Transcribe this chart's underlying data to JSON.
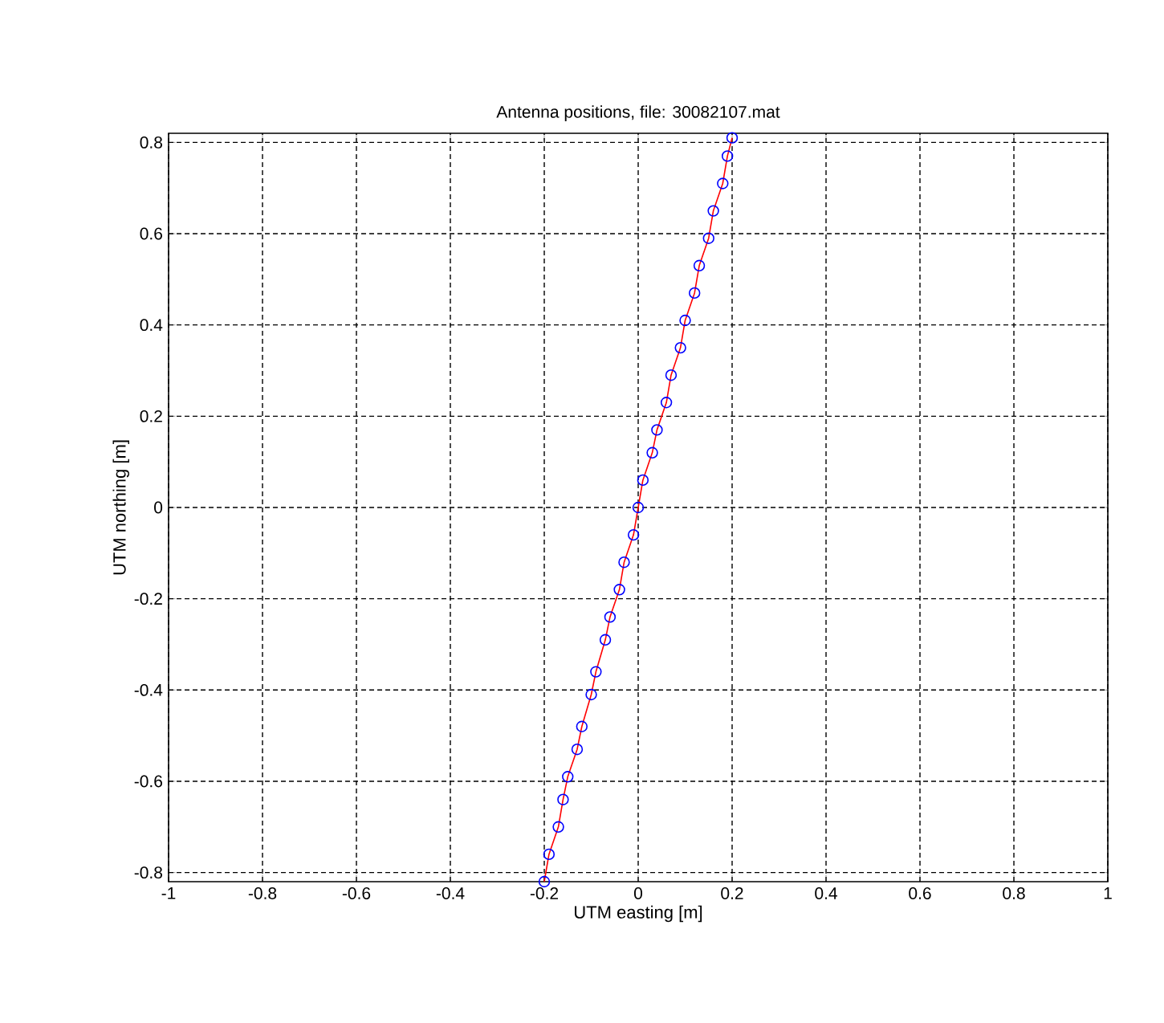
{
  "chart_data": {
    "type": "scatter",
    "title": "Antenna positions, file: 30082107.mat",
    "xlabel": "UTM easting [m]",
    "ylabel": "UTM northing [m]",
    "xlim": [
      -1,
      1
    ],
    "ylim": [
      -0.82,
      0.82
    ],
    "xticks": [
      -1,
      -0.8,
      -0.6,
      -0.4,
      -0.2,
      0,
      0.2,
      0.4,
      0.6,
      0.8,
      1
    ],
    "yticks": [
      -0.8,
      -0.6,
      -0.4,
      -0.2,
      0,
      0.2,
      0.4,
      0.6,
      0.8
    ],
    "grid": true,
    "series": [
      {
        "type": "line",
        "color": "#ff0000",
        "marker": "none",
        "line_style": "solid",
        "x": [
          0.2,
          0.19,
          0.18,
          0.16,
          0.15,
          0.13,
          0.12,
          0.1,
          0.09,
          0.07,
          0.06,
          0.04,
          0.03,
          0.01,
          0,
          -0.01,
          -0.03,
          -0.04,
          -0.06,
          -0.07,
          -0.09,
          -0.1,
          -0.12,
          -0.13,
          -0.15,
          -0.16,
          -0.17,
          -0.19,
          -0.2
        ],
        "values": [
          0.81,
          0.77,
          0.71,
          0.65,
          0.59,
          0.53,
          0.47,
          0.41,
          0.35,
          0.29,
          0.23,
          0.17,
          0.12,
          0.06,
          0,
          -0.06,
          -0.12,
          -0.18,
          -0.24,
          -0.29,
          -0.36,
          -0.41,
          -0.48,
          -0.53,
          -0.59,
          -0.64,
          -0.7,
          -0.76,
          -0.82
        ]
      },
      {
        "color": "#0000ff",
        "marker": "circle",
        "x": [
          0.2,
          0.19,
          0.18,
          0.16,
          0.15,
          0.13,
          0.12,
          0.1,
          0.09,
          0.07,
          0.06,
          0.04,
          0.03,
          0.01,
          0,
          -0.01,
          -0.03,
          -0.04,
          -0.06,
          -0.07,
          -0.09,
          -0.1,
          -0.12,
          -0.13,
          -0.15,
          -0.16,
          -0.17,
          -0.19,
          -0.2
        ],
        "values": [
          0.81,
          0.77,
          0.71,
          0.65,
          0.59,
          0.53,
          0.47,
          0.41,
          0.35,
          0.29,
          0.23,
          0.17,
          0.12,
          0.06,
          0,
          -0.06,
          -0.12,
          -0.18,
          -0.24,
          -0.29,
          -0.36,
          -0.41,
          -0.48,
          -0.53,
          -0.59,
          -0.64,
          -0.7,
          -0.76,
          -0.82
        ]
      }
    ]
  }
}
